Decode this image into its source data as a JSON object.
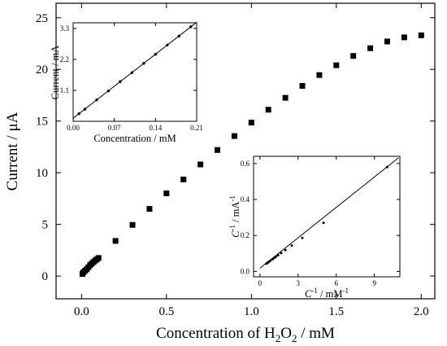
{
  "chart_data": [
    {
      "id": "main",
      "type": "scatter",
      "xlabel": "Concentration of H2O2 / mM",
      "xlabel_parts": {
        "pre": "Concentration of H",
        "sub1": "2",
        "mid": "O",
        "sub2": "2",
        "post": " / mM"
      },
      "ylabel": "Current / μA",
      "xlim": [
        -0.15,
        2.08
      ],
      "ylim": [
        -2.2,
        26.4
      ],
      "xticks": [
        0.0,
        0.5,
        1.0,
        1.5,
        2.0
      ],
      "xtick_labels": [
        "0.0",
        "0.5",
        "1.0",
        "1.5",
        "2.0"
      ],
      "yticks": [
        0,
        5,
        10,
        15,
        20,
        25
      ],
      "ytick_labels": [
        "0",
        "5",
        "10",
        "15",
        "20",
        "25"
      ],
      "marker": "square",
      "x": [
        0.005,
        0.01,
        0.02,
        0.03,
        0.04,
        0.05,
        0.06,
        0.07,
        0.08,
        0.09,
        0.1,
        0.2,
        0.3,
        0.4,
        0.5,
        0.6,
        0.7,
        0.8,
        0.9,
        1.0,
        1.1,
        1.2,
        1.3,
        1.4,
        1.5,
        1.6,
        1.7,
        1.8,
        1.9,
        2.0
      ],
      "y": [
        0.2,
        0.35,
        0.5,
        0.65,
        0.85,
        1.05,
        1.2,
        1.35,
        1.5,
        1.62,
        1.75,
        3.4,
        4.95,
        6.5,
        8.0,
        9.35,
        10.8,
        12.2,
        13.55,
        14.85,
        16.1,
        17.25,
        18.4,
        19.45,
        20.4,
        21.3,
        22.05,
        22.7,
        23.1,
        23.3
      ]
    },
    {
      "id": "inset-top",
      "type": "scatter",
      "xlabel": "Concentration / mM",
      "ylabel": "Current / mA",
      "xlim": [
        0,
        0.21
      ],
      "ylim": [
        0,
        3.5
      ],
      "xticks": [
        0,
        0.07,
        0.14,
        0.21
      ],
      "xtick_labels": [
        "0.00",
        "0.07",
        "0.14",
        "0.21"
      ],
      "yticks": [
        1.1,
        2.2,
        3.3
      ],
      "ytick_labels": [
        "1.1",
        "2.2",
        "3.3"
      ],
      "marker": "dot",
      "x": [
        0.01,
        0.02,
        0.04,
        0.06,
        0.08,
        0.1,
        0.12,
        0.14,
        0.16,
        0.18,
        0.2
      ],
      "y": [
        0.27,
        0.43,
        0.76,
        1.08,
        1.41,
        1.73,
        2.06,
        2.38,
        2.71,
        3.03,
        3.36
      ],
      "fit_line": {
        "x": [
          0.0,
          0.21
        ],
        "y": [
          0.11,
          3.52
        ]
      }
    },
    {
      "id": "inset-bottom",
      "type": "scatter",
      "xlabel": "C-1 / mM-1",
      "xlabel_parts": {
        "var": "C",
        "sup1": "-1",
        "mid": " / mM",
        "sup2": "-1"
      },
      "ylabel": "C-1 / mA-1",
      "ylabel_parts": {
        "var": "C",
        "sup1": "-1",
        "mid": " / mA",
        "sup2": "-1"
      },
      "xlim": [
        -0.5,
        11
      ],
      "ylim": [
        -0.03,
        0.64
      ],
      "xticks": [
        0,
        3,
        6,
        9
      ],
      "xtick_labels": [
        "0",
        "3",
        "6",
        "9"
      ],
      "yticks": [
        0.0,
        0.2,
        0.4,
        0.6
      ],
      "ytick_labels": [
        "0.0",
        "0.2",
        "0.4",
        "0.6"
      ],
      "marker": "dot",
      "x": [
        0.5,
        0.56,
        0.63,
        0.71,
        0.83,
        1.0,
        1.11,
        1.25,
        1.43,
        1.67,
        2.0,
        2.5,
        3.33,
        5.0,
        10.0
      ],
      "y": [
        0.043,
        0.046,
        0.05,
        0.054,
        0.06,
        0.068,
        0.074,
        0.081,
        0.09,
        0.102,
        0.119,
        0.144,
        0.186,
        0.27,
        0.58
      ],
      "fit_line": {
        "x": [
          0.0,
          10.9
        ],
        "y": [
          0.018,
          0.632
        ]
      }
    }
  ]
}
